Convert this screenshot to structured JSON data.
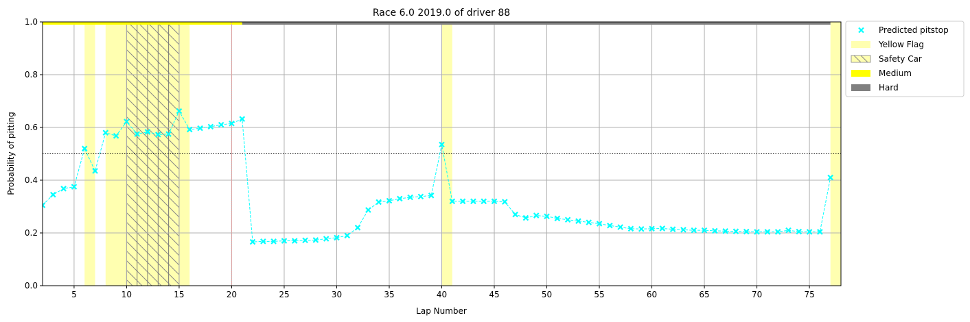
{
  "chart_data": {
    "type": "line",
    "title": "Race 6.0 2019.0 of driver 88",
    "xlabel": "Lap Number",
    "ylabel": "Probability of pitting",
    "xlim": [
      2,
      78
    ],
    "ylim": [
      0,
      1
    ],
    "xticks": [
      5,
      10,
      15,
      20,
      25,
      30,
      35,
      40,
      45,
      50,
      55,
      60,
      65,
      70,
      75
    ],
    "yticks": [
      "0.0",
      "0.2",
      "0.4",
      "0.6",
      "0.8",
      "1.0"
    ],
    "grid": true,
    "legend_position": "outside-top-right",
    "threshold": 0.5,
    "pitstop_lap": 20,
    "series": [
      {
        "name": "Predicted pitstop",
        "color": "#00ffff",
        "marker": "x",
        "x": [
          2,
          3,
          4,
          5,
          6,
          7,
          8,
          9,
          10,
          11,
          12,
          13,
          14,
          15,
          16,
          17,
          18,
          19,
          20,
          21,
          22,
          23,
          24,
          25,
          26,
          27,
          28,
          29,
          30,
          31,
          32,
          33,
          34,
          35,
          36,
          37,
          38,
          39,
          40,
          41,
          42,
          43,
          44,
          45,
          46,
          47,
          48,
          49,
          50,
          51,
          52,
          53,
          54,
          55,
          56,
          57,
          58,
          59,
          60,
          61,
          62,
          63,
          64,
          65,
          66,
          67,
          68,
          69,
          70,
          71,
          72,
          73,
          74,
          75,
          76,
          77
        ],
        "y": [
          0.305,
          0.345,
          0.368,
          0.375,
          0.52,
          0.435,
          0.58,
          0.568,
          0.622,
          0.575,
          0.583,
          0.573,
          0.575,
          0.662,
          0.592,
          0.597,
          0.603,
          0.61,
          0.615,
          0.632,
          0.166,
          0.168,
          0.168,
          0.17,
          0.17,
          0.172,
          0.173,
          0.178,
          0.182,
          0.19,
          0.22,
          0.287,
          0.317,
          0.322,
          0.33,
          0.335,
          0.338,
          0.342,
          0.535,
          0.32,
          0.32,
          0.32,
          0.32,
          0.32,
          0.318,
          0.27,
          0.257,
          0.266,
          0.263,
          0.255,
          0.25,
          0.245,
          0.24,
          0.235,
          0.228,
          0.222,
          0.216,
          0.215,
          0.216,
          0.217,
          0.214,
          0.212,
          0.21,
          0.21,
          0.208,
          0.207,
          0.206,
          0.205,
          0.204,
          0.204,
          0.204,
          0.21,
          0.205,
          0.204,
          0.204,
          0.41
        ]
      }
    ],
    "yellow_flag_spans": [
      [
        6,
        7
      ],
      [
        8,
        16
      ],
      [
        40,
        41
      ],
      [
        77,
        78
      ]
    ],
    "safety_car_span": [
      10,
      15
    ],
    "tyre_bands": [
      {
        "compound": "Medium",
        "start": 2,
        "end": 21,
        "color": "#ffff00"
      },
      {
        "compound": "Hard",
        "start": 21,
        "end": 77,
        "color": "#808080"
      }
    ],
    "legend": [
      {
        "label": "Predicted pitstop",
        "kind": "marker",
        "color": "#00ffff"
      },
      {
        "label": "Yellow Flag",
        "kind": "patch",
        "color": "#ffffb0"
      },
      {
        "label": "Safety Car",
        "kind": "hatch",
        "color": "#ffffb0"
      },
      {
        "label": "Medium",
        "kind": "patch",
        "color": "#ffff00"
      },
      {
        "label": "Hard",
        "kind": "patch",
        "color": "#808080"
      }
    ]
  }
}
